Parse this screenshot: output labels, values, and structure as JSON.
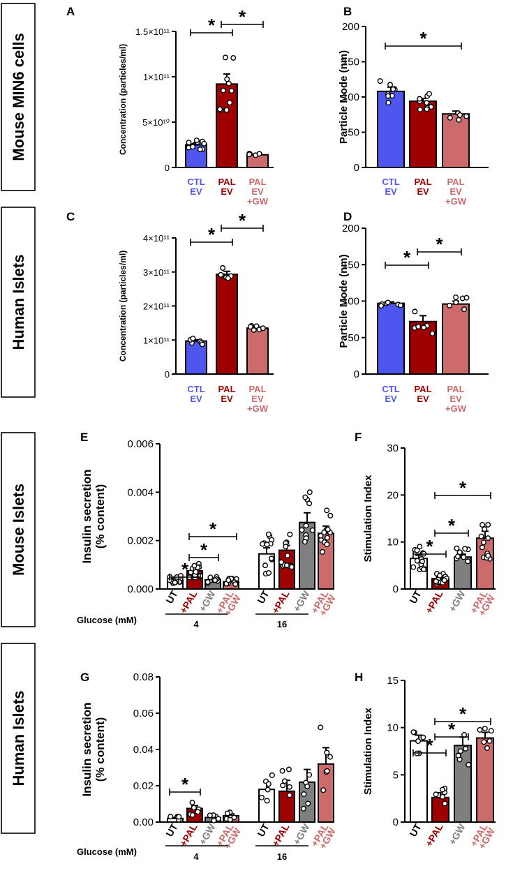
{
  "colors": {
    "ctl": "#4f56f0",
    "pal": "#9e0000",
    "palgw": "#cc6b6b",
    "gw": "#7f7f7f",
    "ut": "#ffffff",
    "ink": "#000000"
  },
  "row_labels": [
    "Mouse MIN6 cells",
    "Human Islets",
    "Mouse Islets",
    "Human Islets"
  ],
  "group_labels": {
    "glucose": "Glucose (mM)",
    "low": "4",
    "high": "16"
  },
  "chart_data": [
    {
      "id": "A",
      "panel_label": "A",
      "type": "bar",
      "ylabel": "Concentration (particles/ml)",
      "ylim": [
        0,
        150000000000
      ],
      "yticks": [
        "0",
        "5×10¹⁰",
        "1×10¹¹",
        "1.5×10¹¹"
      ],
      "categories": [
        [
          "CTL",
          "EV"
        ],
        [
          "PAL",
          "EV"
        ],
        [
          "PAL",
          "EV",
          "+GW"
        ]
      ],
      "values": [
        25000000000,
        92000000000,
        14000000000
      ],
      "sem": [
        2000000000,
        11000000000,
        600000000
      ],
      "significance": [
        {
          "from": 0,
          "to": 1,
          "label": "*"
        },
        {
          "from": 1,
          "to": 2,
          "label": "*"
        }
      ]
    },
    {
      "id": "B",
      "panel_label": "B",
      "type": "bar",
      "ylabel": "Particle Mode (nm)",
      "ylim": [
        0,
        200
      ],
      "yticks": [
        "0",
        "50",
        "100",
        "150",
        "200"
      ],
      "categories": [
        [
          "CTL",
          "EV"
        ],
        [
          "PAL",
          "EV"
        ],
        [
          "PAL",
          "EV",
          "+GW"
        ]
      ],
      "values": [
        108,
        94,
        76
      ],
      "sem": [
        6,
        4,
        4
      ],
      "significance": [
        {
          "from": 0,
          "to": 2,
          "label": "*"
        }
      ]
    },
    {
      "id": "C",
      "panel_label": "C",
      "type": "bar",
      "ylabel": "Concentration (particles/ml)",
      "ylim": [
        0,
        400000000000
      ],
      "yticks": [
        "0",
        "1×10¹¹",
        "2×10¹¹",
        "3×10¹¹",
        "4×10¹¹"
      ],
      "categories": [
        [
          "CTL",
          "EV"
        ],
        [
          "PAL",
          "EV"
        ],
        [
          "PAL",
          "EV",
          "+GW"
        ]
      ],
      "values": [
        97000000000,
        293000000000,
        135000000000
      ],
      "sem": [
        4000000000,
        9000000000,
        3000000000
      ],
      "significance": [
        {
          "from": 0,
          "to": 1,
          "label": "*"
        },
        {
          "from": 1,
          "to": 2,
          "label": "*"
        }
      ]
    },
    {
      "id": "D",
      "panel_label": "D",
      "type": "bar",
      "ylabel": "Particle Mode (nm)",
      "ylim": [
        0,
        200
      ],
      "yticks": [
        "0",
        "50",
        "100",
        "150",
        "200"
      ],
      "categories": [
        [
          "CTL",
          "EV"
        ],
        [
          "PAL",
          "EV"
        ],
        [
          "PAL",
          "EV",
          "+GW"
        ]
      ],
      "values": [
        97,
        72,
        96
      ],
      "sem": [
        2,
        8,
        4
      ],
      "significance": [
        {
          "from": 0,
          "to": 1,
          "label": "*"
        },
        {
          "from": 1,
          "to": 2,
          "label": "*"
        }
      ]
    },
    {
      "id": "E",
      "panel_label": "E",
      "type": "bar",
      "ylabel": [
        "Insulin secretion",
        "(% content)"
      ],
      "ylim": [
        0,
        0.006
      ],
      "yticks": [
        "0.000",
        "0.002",
        "0.004",
        "0.006"
      ],
      "categories": [
        "UT",
        "+PAL",
        "+GW",
        "+PAL +GW",
        "UT",
        "+PAL",
        "+GW",
        "+PAL +GW"
      ],
      "values": [
        0.0004,
        0.00075,
        0.00038,
        0.0003,
        0.00145,
        0.0016,
        0.00275,
        0.0023
      ],
      "sem": [
        5e-05,
        8e-05,
        5e-05,
        4e-05,
        0.00025,
        0.0002,
        0.0004,
        0.0003
      ],
      "significance": [
        {
          "from": 0,
          "to": 1,
          "label": "*"
        },
        {
          "from": 1,
          "to": 2,
          "label": "*"
        },
        {
          "from": 1,
          "to": 3,
          "label": "*"
        }
      ]
    },
    {
      "id": "F",
      "panel_label": "F",
      "type": "bar",
      "ylabel": "Stimulation Index",
      "ylim": [
        0,
        30
      ],
      "yticks": [
        "0",
        "10",
        "20",
        "30"
      ],
      "categories": [
        "UT",
        "+PAL",
        "+GW",
        "+PAL +GW"
      ],
      "values": [
        6.5,
        2.2,
        6.8,
        10.8
      ],
      "sem": [
        0.7,
        0.3,
        0.6,
        1.5
      ],
      "significance": [
        {
          "from": 0,
          "to": 1,
          "label": "*"
        },
        {
          "from": 1,
          "to": 2,
          "label": "*"
        },
        {
          "from": 1,
          "to": 3,
          "label": "*"
        }
      ]
    },
    {
      "id": "G",
      "panel_label": "G",
      "type": "bar",
      "ylabel": [
        "Insulin secretion",
        "(% content)"
      ],
      "ylim": [
        0,
        0.08
      ],
      "yticks": [
        "0.00",
        "0.02",
        "0.04",
        "0.06",
        "0.08"
      ],
      "categories": [
        "UT",
        "+PAL",
        "+GW",
        "+PAL +GW",
        "UT",
        "+PAL",
        "+GW",
        "+PAL +GW"
      ],
      "values": [
        0.002,
        0.0075,
        0.0025,
        0.0035,
        0.018,
        0.017,
        0.022,
        0.032
      ],
      "sem": [
        0.0005,
        0.0015,
        0.0007,
        0.001,
        0.004,
        0.006,
        0.007,
        0.009
      ],
      "significance": [
        {
          "from": 0,
          "to": 1,
          "label": "*"
        }
      ]
    },
    {
      "id": "H",
      "panel_label": "H",
      "type": "bar",
      "ylabel": "Stimulation Index",
      "ylim": [
        0,
        15
      ],
      "yticks": [
        "0",
        "5",
        "10",
        "15"
      ],
      "categories": [
        "UT",
        "+PAL",
        "+GW",
        "+PAL +GW"
      ],
      "values": [
        8.6,
        2.6,
        8.1,
        8.9
      ],
      "sem": [
        0.6,
        0.5,
        0.9,
        0.6
      ],
      "significance": [
        {
          "from": 0,
          "to": 1,
          "label": "*"
        },
        {
          "from": 1,
          "to": 2,
          "label": "*"
        },
        {
          "from": 1,
          "to": 3,
          "label": "*"
        }
      ]
    }
  ]
}
